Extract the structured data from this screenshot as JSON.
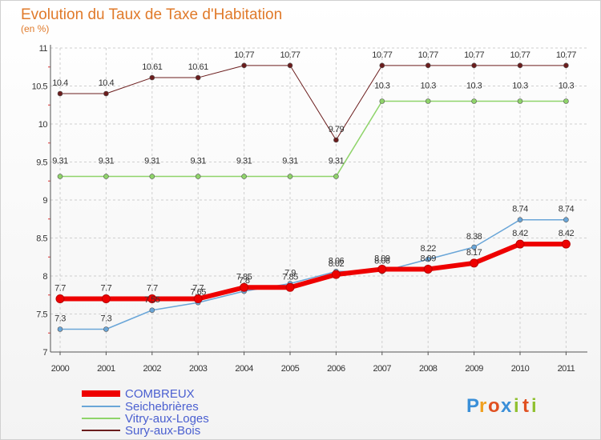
{
  "chart_data": {
    "type": "line",
    "title": "Evolution du Taux de Taxe d'Habitation",
    "subtitle": "(en %)",
    "xlabel": "",
    "ylabel": "",
    "x": [
      "2000",
      "2001",
      "2002",
      "2003",
      "2004",
      "2005",
      "2006",
      "2007",
      "2008",
      "2009",
      "2010",
      "2011"
    ],
    "yticks": [
      "7",
      "7.5",
      "8",
      "8.5",
      "9",
      "9.5",
      "10",
      "10.5",
      "11"
    ],
    "ylim": [
      7,
      11
    ],
    "grid": true,
    "legend_position": "bottom-left",
    "series": [
      {
        "name": "Sury-aux-Bois",
        "color": "#6b1d1d",
        "width": 1,
        "values": [
          10.4,
          10.4,
          10.61,
          10.61,
          10.77,
          10.77,
          9.79,
          10.77,
          10.77,
          10.77,
          10.77,
          10.77
        ],
        "labels": [
          "10.4",
          "10.4",
          "10.61",
          "10.61",
          "10.77",
          "10.77",
          "9.79",
          "10.77",
          "10.77",
          "10.77",
          "10.77",
          "10.77"
        ]
      },
      {
        "name": "Vitry-aux-Loges",
        "color": "#8fd46a",
        "width": 1.5,
        "values": [
          9.31,
          9.31,
          9.31,
          9.31,
          9.31,
          9.31,
          9.31,
          10.3,
          10.3,
          10.3,
          10.3,
          10.3
        ],
        "labels": [
          "9.31",
          "9.31",
          "9.31",
          "9.31",
          "9.31",
          "9.31",
          "9.31",
          "10.3",
          "10.3",
          "10.3",
          "10.3",
          "10.3"
        ]
      },
      {
        "name": "Seichebrières",
        "color": "#6aa6d8",
        "width": 1.5,
        "values": [
          7.3,
          7.3,
          7.55,
          7.65,
          7.8,
          7.9,
          8.06,
          8.06,
          8.22,
          8.38,
          8.74,
          8.74
        ],
        "labels": [
          "7.3",
          "7.3",
          "7.55",
          "7.65",
          "7.8",
          "7.9",
          "8.06",
          "8.06",
          "8.22",
          "8.38",
          "8.74",
          "8.74"
        ]
      },
      {
        "name": "COMBREUX",
        "color": "#ee0000",
        "width": 6,
        "values": [
          7.7,
          7.7,
          7.7,
          7.7,
          7.85,
          7.85,
          8.02,
          8.09,
          8.09,
          8.17,
          8.42,
          8.42
        ],
        "labels": [
          "7.7",
          "7.7",
          "7.7",
          "7.7",
          "7.85",
          "7.85",
          "8.02",
          "8.09",
          "8.09",
          "8.17",
          "8.42",
          "8.42"
        ]
      }
    ],
    "legend": [
      "COMBREUX",
      "Seichebrières",
      "Vitry-aux-Loges",
      "Sury-aux-Bois"
    ]
  },
  "logo": {
    "letters": [
      "P",
      "r",
      "o",
      "x",
      "i",
      "t",
      "i"
    ],
    "colors": [
      "#3a8fd8",
      "#f0a020",
      "#e05020",
      "#3a8fd8",
      "#90c030",
      "#e05020",
      "#90c030"
    ]
  }
}
